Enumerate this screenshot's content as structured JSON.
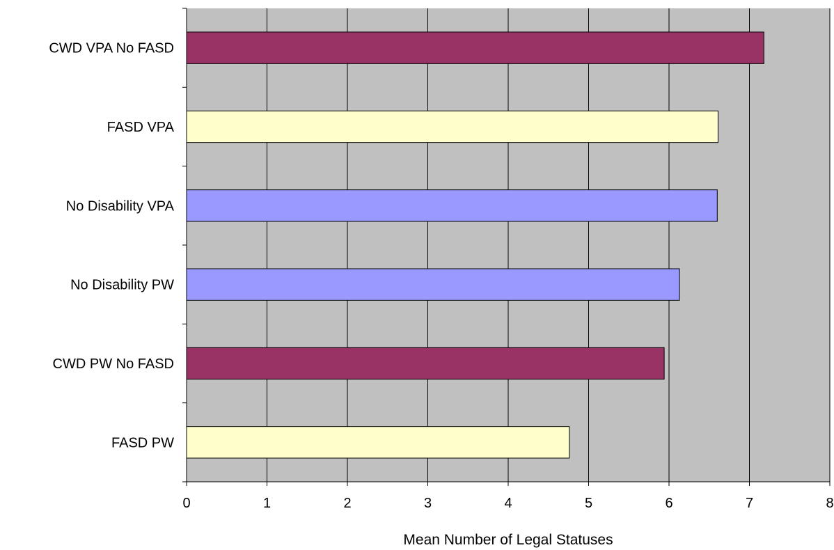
{
  "chart_data": {
    "type": "bar",
    "orientation": "horizontal",
    "categories": [
      "CWD VPA No FASD",
      "FASD VPA",
      "No Disability VPA",
      "No Disability PW",
      "CWD PW No FASD",
      "FASD PW"
    ],
    "values": [
      7.18,
      6.61,
      6.6,
      6.13,
      5.94,
      4.76
    ],
    "bar_colors": [
      "#993366",
      "#ffffcc",
      "#9999ff",
      "#9999ff",
      "#993366",
      "#ffffcc"
    ],
    "xlabel": "Mean Number of Legal Statuses",
    "ylabel": "",
    "xlim": [
      0,
      8
    ],
    "xticks": [
      0,
      1,
      2,
      3,
      4,
      5,
      6,
      7,
      8
    ],
    "plot_background": "#c0c0c0",
    "grid": true,
    "legend": "none"
  }
}
